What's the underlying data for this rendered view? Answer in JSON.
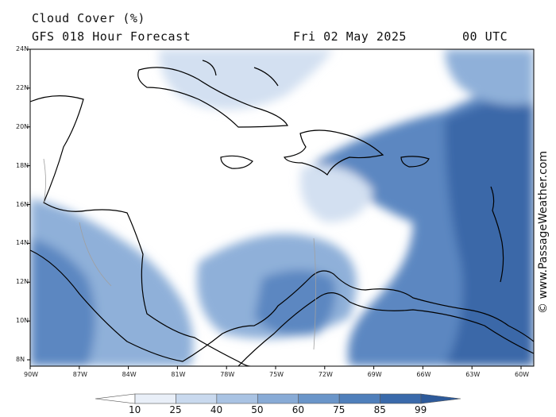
{
  "header": {
    "title": "Cloud Cover (%)",
    "subtitle": "GFS 018 Hour Forecast",
    "valid_date": "Fri 02 May 2025",
    "valid_time": "00 UTC"
  },
  "credit": "© www.PassageWeather.com",
  "axes": {
    "lat_labels": [
      "24N",
      "22N",
      "20N",
      "18N",
      "16N",
      "14N",
      "12N",
      "10N",
      "8N"
    ],
    "lon_labels": [
      "90W",
      "87W",
      "84W",
      "81W",
      "78W",
      "75W",
      "72W",
      "69W",
      "66W",
      "63W",
      "60W"
    ]
  },
  "colorbar": {
    "labels": [
      "10",
      "25",
      "40",
      "50",
      "60",
      "75",
      "85",
      "99"
    ],
    "colors": [
      "#ffffff",
      "#e9eff8",
      "#c9d9ee",
      "#a9c3e3",
      "#88abd6",
      "#6a95c9",
      "#4f7fbb",
      "#3a6aab",
      "#2d5a9a"
    ]
  },
  "map_colors": {
    "ocean_clear": "#ffffff",
    "light": "#d3e0f1",
    "medium": "#8fb0d9",
    "dense": "#5b87c1",
    "heavy": "#3a68a8",
    "coast": "#000000",
    "border": "#a0a0a0"
  }
}
